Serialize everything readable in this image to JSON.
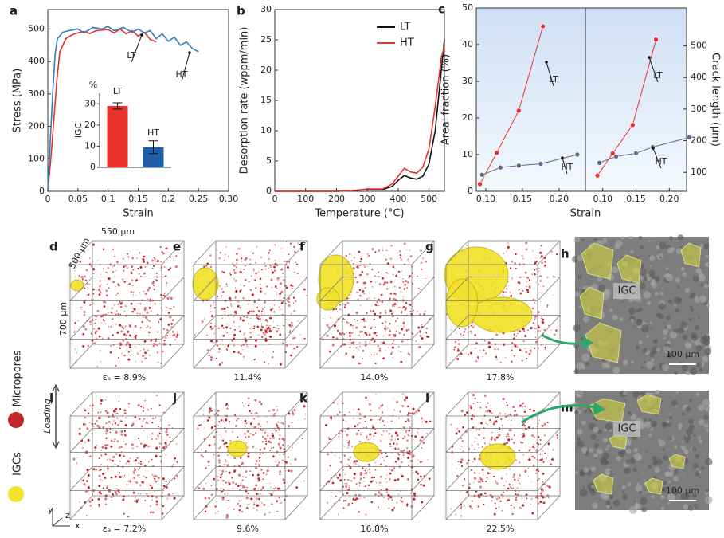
{
  "chart_data": [
    {
      "type": "line",
      "panel": "a",
      "xlabel": "Strain",
      "ylabel": "Stress (MPa)",
      "xlim": [
        0,
        0.3
      ],
      "xticks": [
        0,
        0.05,
        0.1,
        0.15,
        0.2,
        0.25,
        {
          "value": 0.3,
          "label": "0.30"
        }
      ],
      "ylim": [
        0,
        560
      ],
      "yticks": [
        0,
        100,
        200,
        300,
        400,
        500
      ],
      "series": [
        {
          "name": "LT",
          "color": "#e8322b",
          "x": [
            0,
            0.005,
            0.01,
            0.015,
            0.02,
            0.03,
            0.04,
            0.05,
            0.06,
            0.07,
            0.08,
            0.09,
            0.1,
            0.11,
            0.12,
            0.13,
            0.14,
            0.15,
            0.16,
            0.17,
            0.18
          ],
          "values": [
            0,
            100,
            220,
            340,
            430,
            470,
            482,
            488,
            492,
            486,
            495,
            497,
            498,
            488,
            500,
            485,
            495,
            478,
            490,
            468,
            460
          ]
        },
        {
          "name": "HT",
          "color": "#2f7fc1",
          "x": [
            0,
            0.004,
            0.008,
            0.012,
            0.016,
            0.025,
            0.035,
            0.05,
            0.06,
            0.075,
            0.09,
            0.1,
            0.11,
            0.125,
            0.14,
            0.15,
            0.16,
            0.17,
            0.18,
            0.19,
            0.2,
            0.21,
            0.22,
            0.23,
            0.24,
            0.25
          ],
          "values": [
            0,
            150,
            300,
            420,
            470,
            490,
            495,
            500,
            488,
            505,
            500,
            508,
            495,
            505,
            490,
            500,
            488,
            495,
            470,
            485,
            462,
            475,
            450,
            460,
            440,
            430
          ]
        }
      ]
    },
    {
      "type": "bar",
      "title": "%",
      "ylabel": "IGC",
      "categories": [
        "LT",
        "HT"
      ],
      "values": [
        29,
        9.5
      ],
      "errors": [
        1.5,
        3
      ],
      "colors": [
        "#e8322b",
        "#1f5fa8"
      ],
      "ylim": [
        0,
        35
      ],
      "yticks": [
        0,
        10,
        20,
        30
      ]
    },
    {
      "type": "line",
      "panel": "b",
      "xlabel": "Temperature (°C)",
      "ylabel": "Desorption rate (wppm/min)",
      "xlim": [
        0,
        550
      ],
      "xticks": [
        0,
        100,
        200,
        300,
        400,
        500
      ],
      "ylim": [
        0,
        30
      ],
      "yticks": [
        0,
        5,
        10,
        15,
        20,
        25,
        30
      ],
      "legend": "upper-right",
      "series": [
        {
          "name": "LT",
          "color": "#111111",
          "x": [
            0,
            100,
            200,
            250,
            300,
            350,
            380,
            400,
            420,
            440,
            460,
            480,
            500,
            520,
            540,
            550
          ],
          "values": [
            0,
            0,
            0,
            0.1,
            0.3,
            0.3,
            0.8,
            1.8,
            2.6,
            2.2,
            2,
            2.5,
            4.5,
            10,
            20,
            25
          ]
        },
        {
          "name": "HT",
          "color": "#e8322b",
          "x": [
            0,
            100,
            200,
            250,
            300,
            350,
            380,
            400,
            420,
            440,
            460,
            480,
            500,
            520,
            540,
            550
          ],
          "values": [
            0,
            0,
            0,
            0.1,
            0.4,
            0.4,
            1.2,
            2.5,
            3.8,
            3.2,
            3,
            4,
            7,
            14,
            22,
            24
          ]
        }
      ]
    },
    {
      "type": "scatter-line",
      "panel": "c",
      "ylabel": "Areal fraction (%)",
      "xlim": [
        0.087,
        0.236
      ],
      "xticks": [
        {
          "value": 0.1,
          "label": "0.10"
        },
        0.15,
        {
          "value": 0.2,
          "label": "0.20"
        }
      ],
      "ylim": [
        0,
        50
      ],
      "yticks": [
        0,
        10,
        20,
        30,
        40,
        50
      ],
      "series": [
        {
          "name": "LT",
          "color": "#e8322b",
          "x": [
            0.092,
            0.115,
            0.145,
            0.178
          ],
          "values": [
            2,
            10.5,
            22,
            45
          ]
        },
        {
          "name": "HT",
          "color": "#5a6b8c",
          "x": [
            0.095,
            0.12,
            0.145,
            0.175,
            0.225
          ],
          "values": [
            4.5,
            6.5,
            7,
            7.5,
            10
          ]
        }
      ]
    },
    {
      "type": "scatter-line",
      "xlabel": "Strain",
      "ylabel": "Crack length (μm)",
      "xlim": [
        0.074,
        0.226
      ],
      "xticks": [
        {
          "value": 0.1,
          "label": "0.10"
        },
        0.15,
        {
          "value": 0.2,
          "label": "0.20"
        }
      ],
      "ylim": [
        40,
        620
      ],
      "yticks": [
        100,
        200,
        300,
        400,
        500
      ],
      "series": [
        {
          "name": "LT",
          "color": "#e8322b",
          "x": [
            0.092,
            0.115,
            0.145,
            0.18
          ],
          "values": [
            90,
            160,
            250,
            520
          ]
        },
        {
          "name": "HT",
          "color": "#5a6b8c",
          "x": [
            0.095,
            0.12,
            0.15,
            0.175,
            0.23
          ],
          "values": [
            130,
            150,
            160,
            180,
            210
          ]
        }
      ]
    }
  ],
  "figure": {
    "micropores": "Micropores",
    "igcs": "IGCs",
    "loading": "Loading",
    "size_x": "550 μm",
    "size_y": "500 μm",
    "size_z": "700 μm",
    "panels": [
      {
        "letter": "d",
        "caption": "εₐ = 8.9%"
      },
      {
        "letter": "e",
        "caption": "11.4%"
      },
      {
        "letter": "f",
        "caption": "14.0%"
      },
      {
        "letter": "g",
        "caption": "17.8%"
      },
      {
        "letter": "i",
        "caption": "εₐ = 7.2%"
      },
      {
        "letter": "j",
        "caption": "9.6%"
      },
      {
        "letter": "k",
        "caption": "16.8%"
      },
      {
        "letter": "l",
        "caption": "22.5%"
      }
    ],
    "sem": [
      {
        "letter": "h",
        "label": "IGC",
        "scale": "100 μm"
      },
      {
        "letter": "m",
        "label": "IGC",
        "scale": "100 μm"
      }
    ],
    "axes": [
      "x",
      "y",
      "z"
    ]
  }
}
